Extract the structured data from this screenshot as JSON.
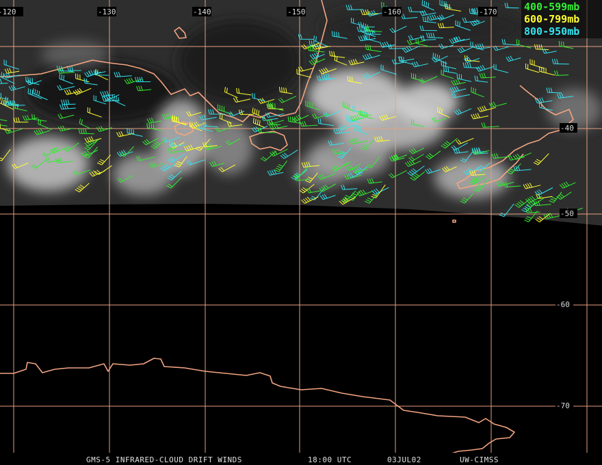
{
  "map": {
    "longitude_labels": [
      "-120",
      "-130",
      "-140",
      "-150",
      "-160",
      "-170"
    ],
    "latitude_labels": [
      "-40",
      "-50",
      "-60",
      "-70"
    ],
    "grid_color": "#e8a080",
    "coast_color": "#f4a582"
  },
  "legend": [
    {
      "label": "400-599mb",
      "color": "#33ee33"
    },
    {
      "label": "600-799mb",
      "color": "#ffff33"
    },
    {
      "label": "800-950mb",
      "color": "#33e5f0"
    }
  ],
  "footer": {
    "product": "GMS-5 INFRARED-CLOUD DRIFT WINDS",
    "time": "18:00 UTC",
    "date": "03JUL02",
    "source": "UW-CIMSS"
  }
}
